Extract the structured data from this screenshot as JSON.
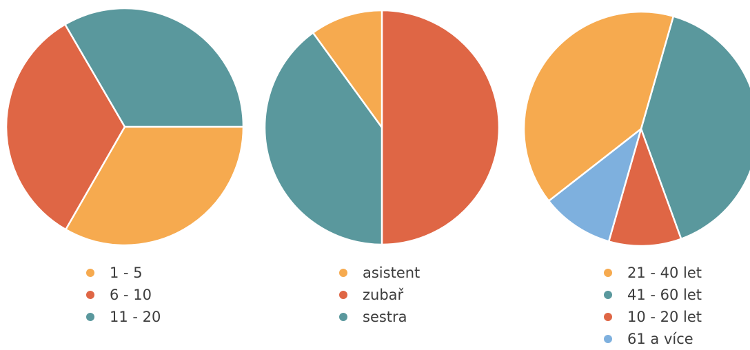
{
  "colors": {
    "orange": "#f6aa4f",
    "red": "#df6645",
    "teal": "#5a989d",
    "blue": "#7eb0de"
  },
  "chart_data": [
    {
      "type": "pie",
      "title": "",
      "slices": [
        {
          "label": "1 - 5",
          "value": 33.3,
          "color": "#f6aa4f"
        },
        {
          "label": "6 - 10",
          "value": 33.3,
          "color": "#df6645"
        },
        {
          "label": "11 - 20",
          "value": 33.4,
          "color": "#5a989d"
        }
      ],
      "legend": [
        "1 - 5",
        "6 - 10",
        "11 - 20"
      ],
      "legend_position": "bottom"
    },
    {
      "type": "pie",
      "title": "",
      "slices": [
        {
          "label": "zubař",
          "value": 50,
          "color": "#df6645"
        },
        {
          "label": "sestra",
          "value": 40,
          "color": "#5a989d"
        },
        {
          "label": "asistent",
          "value": 10,
          "color": "#f6aa4f"
        }
      ],
      "legend": [
        "asistent",
        "zubař",
        "sestra"
      ],
      "legend_position": "bottom"
    },
    {
      "type": "pie",
      "title": "",
      "slices": [
        {
          "label": "41 - 60 let",
          "value": 40,
          "color": "#5a989d"
        },
        {
          "label": "10 - 20 let",
          "value": 10,
          "color": "#df6645"
        },
        {
          "label": "61 a více",
          "value": 10,
          "color": "#7eb0de"
        },
        {
          "label": "21 - 40 let",
          "value": 40,
          "color": "#f6aa4f"
        }
      ],
      "legend": [
        "21 - 40 let",
        "41 - 60 let",
        "10 - 20 let",
        "61 a více"
      ],
      "legend_position": "bottom"
    }
  ]
}
